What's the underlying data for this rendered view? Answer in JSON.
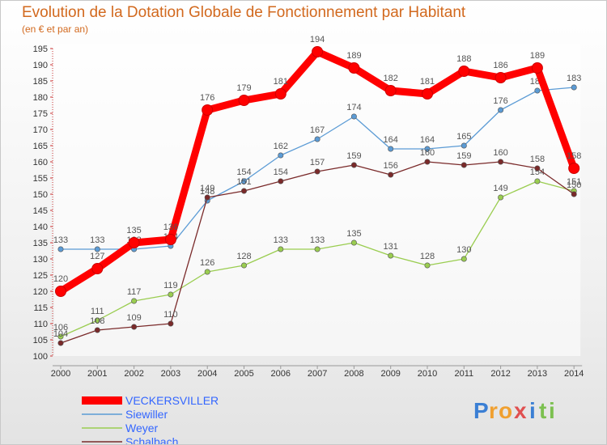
{
  "chart_data": {
    "type": "line",
    "title": "Evolution de la Dotation Globale de Fonctionnement par Habitant",
    "subtitle": "(en € et par an)",
    "xlabel": "",
    "ylabel": "",
    "x": [
      "2000",
      "2001",
      "2002",
      "2003",
      "2004",
      "2005",
      "2006",
      "2007",
      "2008",
      "2009",
      "2010",
      "2011",
      "2012",
      "2013",
      "2014"
    ],
    "ylim": [
      100,
      195
    ],
    "yticks": [
      100,
      105,
      110,
      115,
      120,
      125,
      130,
      135,
      140,
      145,
      150,
      155,
      160,
      165,
      170,
      175,
      180,
      185,
      190,
      195
    ],
    "grid": false,
    "legend": "bottom-left",
    "series": [
      {
        "name": "VECKERSVILLER",
        "color": "#ff0000",
        "text_color": "#3366ff",
        "bold": true,
        "values": [
          120,
          127,
          135,
          136,
          176,
          179,
          181,
          194,
          189,
          182,
          181,
          188,
          186,
          189,
          158
        ]
      },
      {
        "name": "Siewiller",
        "color": "#5b9bd5",
        "text_color": "#3366ff",
        "bold": false,
        "values": [
          133,
          133,
          133,
          134,
          148,
          154,
          162,
          167,
          174,
          164,
          164,
          165,
          176,
          182,
          183
        ]
      },
      {
        "name": "Weyer",
        "color": "#9acd50",
        "text_color": "#3366ff",
        "bold": false,
        "values": [
          106,
          111,
          117,
          119,
          126,
          128,
          133,
          133,
          135,
          131,
          128,
          130,
          149,
          154,
          151
        ]
      },
      {
        "name": "Schalbach",
        "color": "#7a2a2a",
        "text_color": "#3366ff",
        "bold": false,
        "values": [
          104,
          108,
          109,
          110,
          149,
          151,
          154,
          157,
          159,
          156,
          160,
          159,
          160,
          158,
          150
        ]
      }
    ]
  },
  "branding": {
    "logo_letters": [
      "P",
      "r",
      "o",
      "x",
      "i",
      "t",
      "i"
    ],
    "logo_colors": [
      "#3b7fd4",
      "#f0a030",
      "#f0a030",
      "#e05050",
      "#3b7fd4",
      "#7cc050",
      "#7cc050"
    ]
  }
}
